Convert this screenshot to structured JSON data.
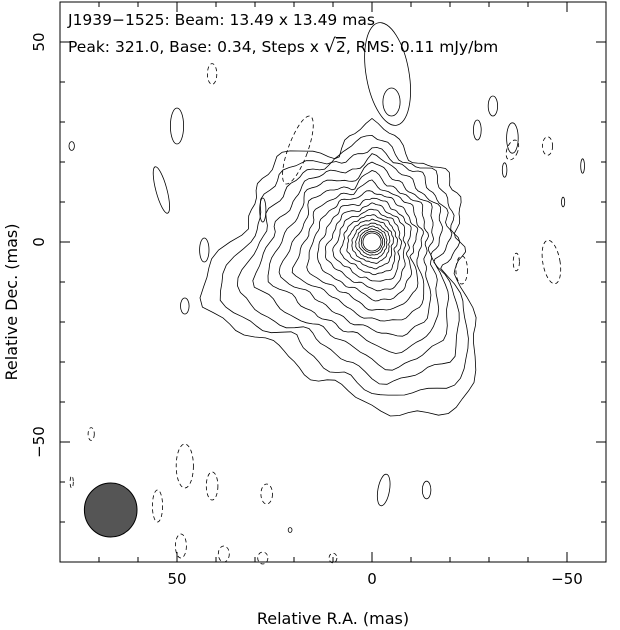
{
  "chart_data": {
    "type": "contour",
    "source": "J1939−1525",
    "header_line1": "J1939−1525: Beam: 13.49 x 13.49 mas",
    "header_line2_prefix": "Peak: 321.0, Base: 0.34, Steps x ",
    "header_line2_sqrt": "√",
    "header_line2_two": "2",
    "header_line2_suffix": ", RMS: 0.11 mJy/bm",
    "beam": {
      "major_mas": 13.49,
      "minor_mas": 13.49,
      "center_x_mas": 67,
      "center_y_mas": -67
    },
    "peak_mJy": 321.0,
    "base_mJy": 0.34,
    "step_factor": "sqrt(2)",
    "rms_mJy_per_beam": 0.11,
    "xlabel": "Relative R.A. (mas)",
    "ylabel": "Relative Dec. (mas)",
    "xlim": [
      80,
      -60
    ],
    "ylim": [
      -80,
      60
    ],
    "xticks": [
      50,
      0,
      -50
    ],
    "yticks": [
      50,
      0,
      -50
    ],
    "xtick_labels": [
      "50",
      "0",
      "−50"
    ],
    "ytick_labels": [
      "50",
      "0",
      "−50"
    ],
    "core": {
      "x": 0,
      "y": 0
    },
    "num_core_contours": 18,
    "jet_direction": "south-east"
  }
}
